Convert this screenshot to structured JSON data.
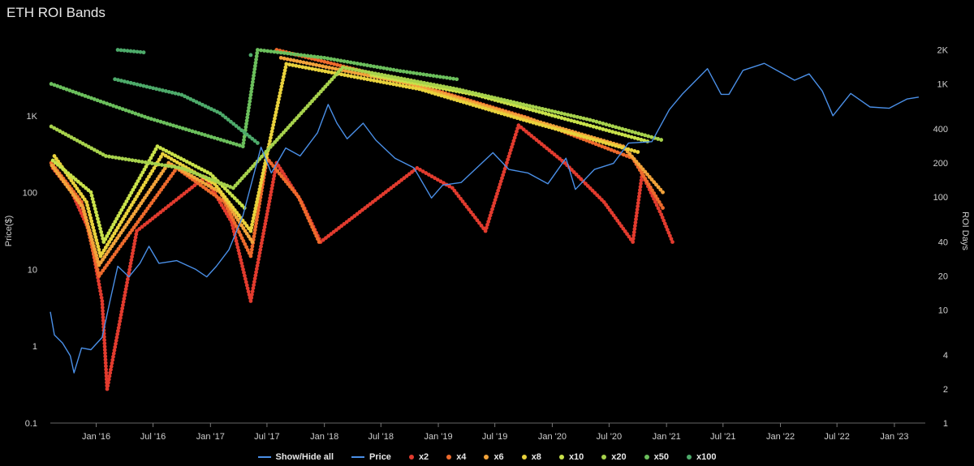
{
  "title": "ETH ROI Bands",
  "colors": {
    "price": "#4a8fe7",
    "x2": "#e23b2e",
    "x4": "#ee6a2c",
    "x6": "#f2a33a",
    "x8": "#e9d23c",
    "x10": "#c9e24a",
    "x20": "#a7d24c",
    "x50": "#6bbf5c",
    "x100": "#4daa6a"
  },
  "legend": [
    {
      "key": "all",
      "label": "Show/Hide all",
      "symbol": "line",
      "color": "#4a8fe7"
    },
    {
      "key": "price",
      "label": "Price",
      "symbol": "line",
      "color": "#4a8fe7"
    },
    {
      "key": "x2",
      "label": "x2",
      "symbol": "dot",
      "color": "#e23b2e"
    },
    {
      "key": "x4",
      "label": "x4",
      "symbol": "dot",
      "color": "#ee6a2c"
    },
    {
      "key": "x6",
      "label": "x6",
      "symbol": "dot",
      "color": "#f2a33a"
    },
    {
      "key": "x8",
      "label": "x8",
      "symbol": "dot",
      "color": "#e9d23c"
    },
    {
      "key": "x10",
      "label": "x10",
      "symbol": "dot",
      "color": "#c9e24a"
    },
    {
      "key": "x20",
      "label": "x20",
      "symbol": "dot",
      "color": "#a7d24c"
    },
    {
      "key": "x50",
      "label": "x50",
      "symbol": "dot",
      "color": "#6bbf5c"
    },
    {
      "key": "x100",
      "label": "x100",
      "symbol": "dot",
      "color": "#4daa6a"
    }
  ],
  "chart_data": {
    "type": "line+scatter",
    "title": "ETH ROI Bands",
    "ylabel_left": "Price($)",
    "ylabel_right": "ROI Days",
    "left_axis": {
      "scale": "log",
      "range": [
        0.1,
        10000
      ],
      "ticks": [
        "0.1",
        "1",
        "10",
        "100",
        "1K"
      ]
    },
    "right_axis": {
      "scale": "log",
      "range": [
        1,
        2500
      ],
      "ticks": [
        "1",
        "2",
        "4",
        "10",
        "20",
        "40",
        "100",
        "200",
        "400",
        "1K",
        "2K"
      ]
    },
    "x_axis": {
      "range": [
        "2015-08-07",
        "2023-04-10"
      ],
      "ticks": [
        {
          "label": "Jan '16",
          "date": "2016-01-01"
        },
        {
          "label": "Jul '16",
          "date": "2016-07-01"
        },
        {
          "label": "Jan '17",
          "date": "2017-01-01"
        },
        {
          "label": "Jul '17",
          "date": "2017-07-01"
        },
        {
          "label": "Jan '18",
          "date": "2018-01-01"
        },
        {
          "label": "Jul '18",
          "date": "2018-07-01"
        },
        {
          "label": "Jan '19",
          "date": "2019-01-01"
        },
        {
          "label": "Jul '19",
          "date": "2019-07-01"
        },
        {
          "label": "Jan '20",
          "date": "2020-01-01"
        },
        {
          "label": "Jul '20",
          "date": "2020-07-01"
        },
        {
          "label": "Jan '21",
          "date": "2021-01-01"
        },
        {
          "label": "Jul '21",
          "date": "2021-07-01"
        },
        {
          "label": "Jan '22",
          "date": "2022-01-01"
        },
        {
          "label": "Jul '22",
          "date": "2022-07-01"
        },
        {
          "label": "Jan '23",
          "date": "2023-01-01"
        }
      ]
    },
    "price_series": {
      "name": "Price",
      "points": [
        [
          "2015-08-07",
          2.8
        ],
        [
          "2015-08-20",
          1.4
        ],
        [
          "2015-09-15",
          1.1
        ],
        [
          "2015-10-10",
          0.75
        ],
        [
          "2015-10-22",
          0.45
        ],
        [
          "2015-11-15",
          0.95
        ],
        [
          "2015-12-15",
          0.9
        ],
        [
          "2016-01-20",
          1.3
        ],
        [
          "2016-02-15",
          4
        ],
        [
          "2016-03-10",
          11
        ],
        [
          "2016-04-15",
          8
        ],
        [
          "2016-05-20",
          12
        ],
        [
          "2016-06-18",
          20
        ],
        [
          "2016-07-20",
          12
        ],
        [
          "2016-09-15",
          13
        ],
        [
          "2016-11-15",
          10
        ],
        [
          "2016-12-20",
          8
        ],
        [
          "2017-01-20",
          11
        ],
        [
          "2017-03-01",
          18
        ],
        [
          "2017-04-15",
          50
        ],
        [
          "2017-06-12",
          390
        ],
        [
          "2017-07-15",
          180
        ],
        [
          "2017-08-30",
          380
        ],
        [
          "2017-10-15",
          300
        ],
        [
          "2017-12-10",
          600
        ],
        [
          "2018-01-13",
          1400
        ],
        [
          "2018-02-10",
          800
        ],
        [
          "2018-03-15",
          500
        ],
        [
          "2018-05-05",
          800
        ],
        [
          "2018-06-15",
          480
        ],
        [
          "2018-08-15",
          280
        ],
        [
          "2018-10-15",
          210
        ],
        [
          "2018-12-10",
          85
        ],
        [
          "2019-01-15",
          125
        ],
        [
          "2019-03-15",
          135
        ],
        [
          "2019-06-25",
          330
        ],
        [
          "2019-08-15",
          200
        ],
        [
          "2019-10-15",
          180
        ],
        [
          "2019-12-18",
          130
        ],
        [
          "2020-02-14",
          280
        ],
        [
          "2020-03-15",
          110
        ],
        [
          "2020-05-15",
          200
        ],
        [
          "2020-07-15",
          240
        ],
        [
          "2020-09-01",
          440
        ],
        [
          "2020-11-15",
          460
        ],
        [
          "2021-01-10",
          1200
        ],
        [
          "2021-02-20",
          1900
        ],
        [
          "2021-05-12",
          4100
        ],
        [
          "2021-06-25",
          1900
        ],
        [
          "2021-07-20",
          1900
        ],
        [
          "2021-09-03",
          3900
        ],
        [
          "2021-11-10",
          4800
        ],
        [
          "2022-01-05",
          3600
        ],
        [
          "2022-02-15",
          2900
        ],
        [
          "2022-04-03",
          3500
        ],
        [
          "2022-05-15",
          2100
        ],
        [
          "2022-06-18",
          1000
        ],
        [
          "2022-08-14",
          1950
        ],
        [
          "2022-10-15",
          1300
        ],
        [
          "2022-12-15",
          1250
        ],
        [
          "2023-02-10",
          1650
        ],
        [
          "2023-03-20",
          1750
        ]
      ]
    },
    "roi_bands": [
      {
        "name": "x2",
        "color": "#e23b2e",
        "points": [
          [
            "2015-08-15",
            180
          ],
          [
            "2015-10-15",
            110
          ],
          [
            "2015-12-10",
            50
          ],
          [
            "2016-01-20",
            12
          ],
          [
            "2016-02-05",
            2
          ],
          [
            "2016-05-10",
            50
          ],
          [
            "2016-12-15",
            150
          ],
          [
            "2017-03-10",
            60
          ],
          [
            "2017-05-10",
            12
          ],
          [
            "2017-08-01",
            200
          ],
          [
            "2017-10-20",
            90
          ],
          [
            "2017-12-20",
            40
          ],
          [
            "2018-10-25",
            180
          ],
          [
            "2019-02-15",
            120
          ],
          [
            "2019-06-01",
            50
          ],
          [
            "2019-09-15",
            430
          ],
          [
            "2020-02-10",
            200
          ],
          [
            "2020-06-15",
            90
          ],
          [
            "2020-09-15",
            40
          ],
          [
            "2020-10-15",
            160
          ],
          [
            "2020-12-15",
            70
          ],
          [
            "2021-01-20",
            40
          ]
        ]
      },
      {
        "name": "x4",
        "color": "#ee6a2c",
        "points": [
          [
            "2015-08-10",
            200
          ],
          [
            "2015-11-15",
            90
          ],
          [
            "2016-01-10",
            20
          ],
          [
            "2016-09-15",
            180
          ],
          [
            "2017-02-15",
            90
          ],
          [
            "2017-05-10",
            30
          ],
          [
            "2017-07-01",
            220
          ],
          [
            "2017-10-10",
            100
          ],
          [
            "2017-12-15",
            40
          ],
          [
            "2017-08-01",
            2000
          ],
          [
            "2018-10-15",
            1000
          ],
          [
            "2019-10-15",
            500
          ],
          [
            "2020-09-15",
            220
          ],
          [
            "2020-12-20",
            80
          ]
        ]
      },
      {
        "name": "x6",
        "color": "#f2a33a",
        "points": [
          [
            "2015-08-12",
            190
          ],
          [
            "2015-11-20",
            80
          ],
          [
            "2016-01-10",
            25
          ],
          [
            "2016-08-20",
            200
          ],
          [
            "2017-02-01",
            110
          ],
          [
            "2017-05-15",
            40
          ],
          [
            "2017-08-15",
            1700
          ],
          [
            "2018-10-01",
            1000
          ],
          [
            "2019-09-15",
            520
          ],
          [
            "2020-08-15",
            280
          ],
          [
            "2020-12-20",
            110
          ]
        ]
      },
      {
        "name": "x8",
        "color": "#e9d23c",
        "points": [
          [
            "2015-08-20",
            230
          ],
          [
            "2015-12-01",
            90
          ],
          [
            "2016-01-15",
            30
          ],
          [
            "2016-08-01",
            240
          ],
          [
            "2017-01-15",
            130
          ],
          [
            "2017-05-10",
            50
          ],
          [
            "2017-09-01",
            1500
          ],
          [
            "2018-11-01",
            900
          ],
          [
            "2019-10-01",
            480
          ],
          [
            "2020-10-01",
            250
          ]
        ]
      },
      {
        "name": "x10",
        "color": "#c9e24a",
        "points": [
          [
            "2015-08-15",
            210
          ],
          [
            "2015-12-15",
            110
          ],
          [
            "2016-01-25",
            40
          ],
          [
            "2016-07-15",
            280
          ],
          [
            "2017-01-01",
            160
          ],
          [
            "2017-04-20",
            80
          ],
          [
            "2018-06-01",
            1200
          ],
          [
            "2019-05-01",
            800
          ],
          [
            "2020-04-01",
            450
          ],
          [
            "2020-11-01",
            310
          ]
        ]
      },
      {
        "name": "x20",
        "color": "#a7d24c",
        "points": [
          [
            "2015-08-10",
            420
          ],
          [
            "2016-02-01",
            230
          ],
          [
            "2016-10-01",
            180
          ],
          [
            "2017-03-15",
            120
          ],
          [
            "2018-03-01",
            1400
          ],
          [
            "2019-03-01",
            900
          ],
          [
            "2020-05-01",
            480
          ],
          [
            "2020-12-15",
            320
          ]
        ]
      },
      {
        "name": "x50",
        "color": "#6bbf5c",
        "points": [
          [
            "2015-08-10",
            1000
          ],
          [
            "2016-01-15",
            700
          ],
          [
            "2016-06-15",
            500
          ],
          [
            "2017-04-15",
            280
          ],
          [
            "2017-06-01",
            2000
          ],
          [
            "2018-01-01",
            1700
          ],
          [
            "2018-09-01",
            1300
          ],
          [
            "2019-03-01",
            1100
          ]
        ]
      },
      {
        "name": "x100",
        "color": "#4daa6a",
        "points": [
          [
            "2016-03-10",
            2000
          ],
          [
            "2016-06-01",
            1900
          ],
          [
            "2016-03-01",
            1100
          ],
          [
            "2016-10-01",
            800
          ],
          [
            "2017-02-01",
            550
          ],
          [
            "2017-06-01",
            300
          ],
          [
            "2017-05-10",
            1800
          ]
        ]
      }
    ]
  }
}
